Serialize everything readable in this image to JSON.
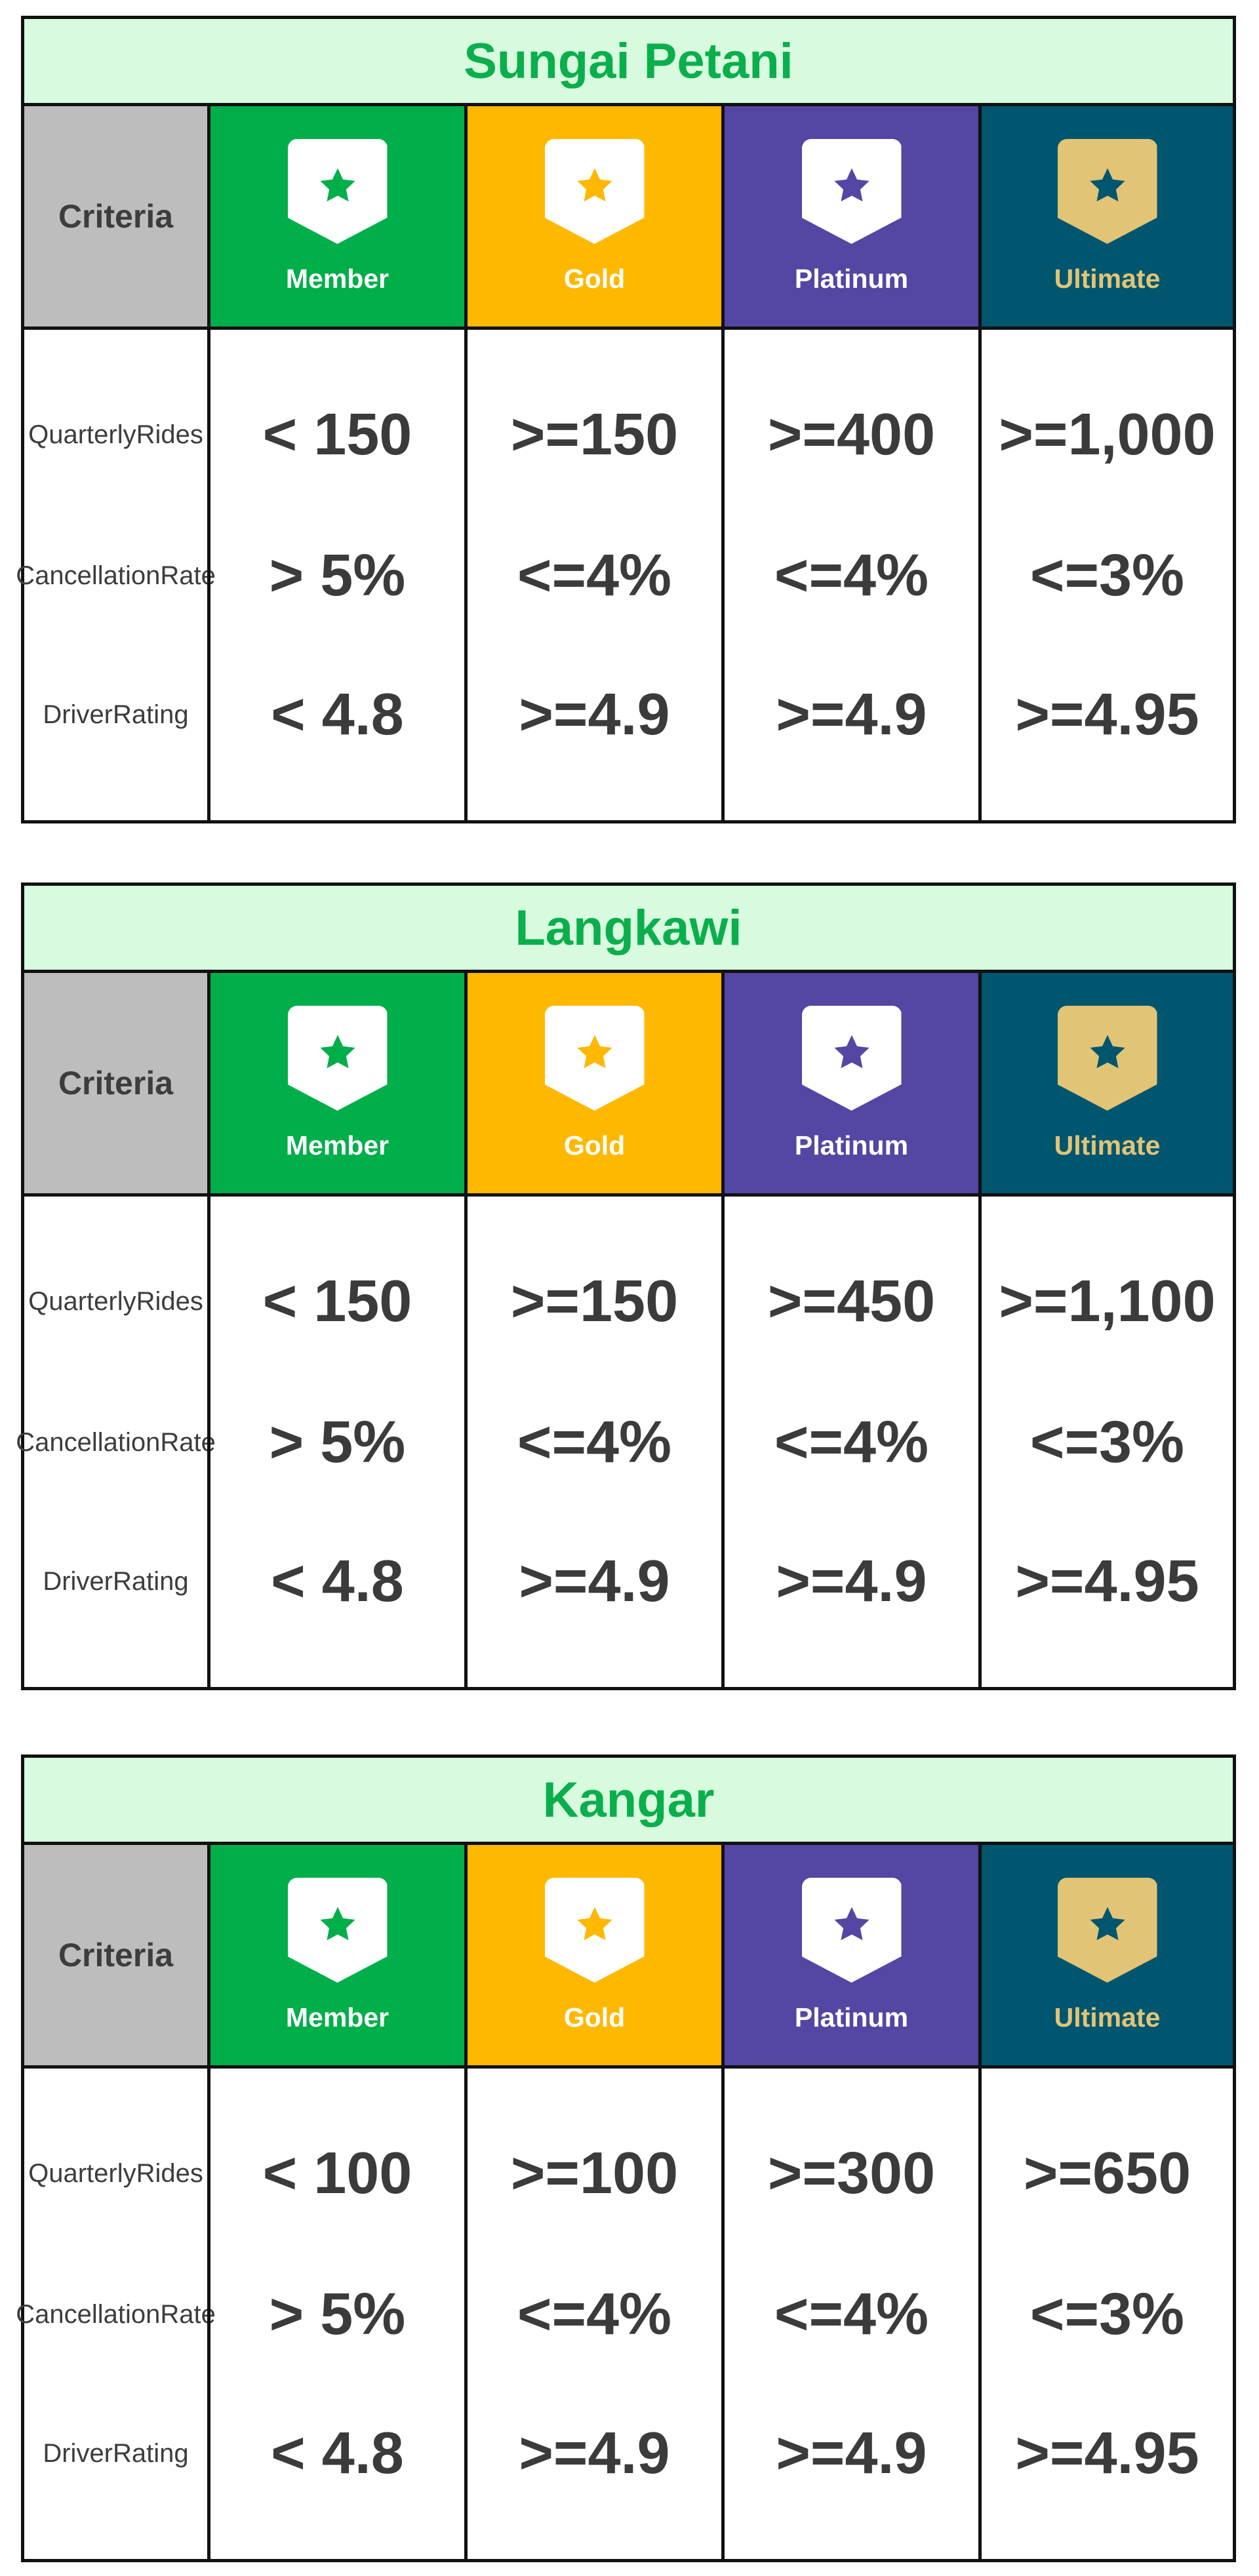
{
  "criteria_header": "Criteria",
  "criteria": [
    [
      "Quarterly",
      "Rides"
    ],
    [
      "Cancellation",
      "Rate"
    ],
    [
      "Driver",
      "Rating"
    ]
  ],
  "tiers": [
    {
      "label": "Member",
      "bg": "#00ae4a",
      "badge_color": "#ffffff",
      "star_color": "#00ae4a",
      "label_color": "#ffffff"
    },
    {
      "label": "Gold",
      "bg": "#ffb800",
      "badge_color": "#ffffff",
      "star_color": "#ffb800",
      "label_color": "#ffffff"
    },
    {
      "label": "Platinum",
      "bg": "#5446a3",
      "badge_color": "#ffffff",
      "star_color": "#5446a3",
      "label_color": "#ffffff"
    },
    {
      "label": "Ultimate",
      "bg": "#00566f",
      "badge_color": "#e2c476",
      "star_color": "#00566f",
      "label_color": "#e2c476"
    }
  ],
  "regions": [
    {
      "name": "Sungai Petani",
      "rows": [
        [
          "< 150",
          ">=150",
          ">=400",
          ">=1,000"
        ],
        [
          "> 5%",
          "<=4%",
          "<=4%",
          "<=3%"
        ],
        [
          "< 4.8",
          ">=4.9",
          ">=4.9",
          ">=4.95"
        ]
      ]
    },
    {
      "name": "Langkawi",
      "rows": [
        [
          "< 150",
          ">=150",
          ">=450",
          ">=1,100"
        ],
        [
          "> 5%",
          "<=4%",
          "<=4%",
          "<=3%"
        ],
        [
          "< 4.8",
          ">=4.9",
          ">=4.9",
          ">=4.95"
        ]
      ]
    },
    {
      "name": "Kangar",
      "rows": [
        [
          "< 100",
          ">=100",
          ">=300",
          ">=650"
        ],
        [
          "> 5%",
          "<=4%",
          "<=4%",
          "<=3%"
        ],
        [
          "< 4.8",
          ">=4.9",
          ">=4.9",
          ">=4.95"
        ]
      ]
    }
  ]
}
